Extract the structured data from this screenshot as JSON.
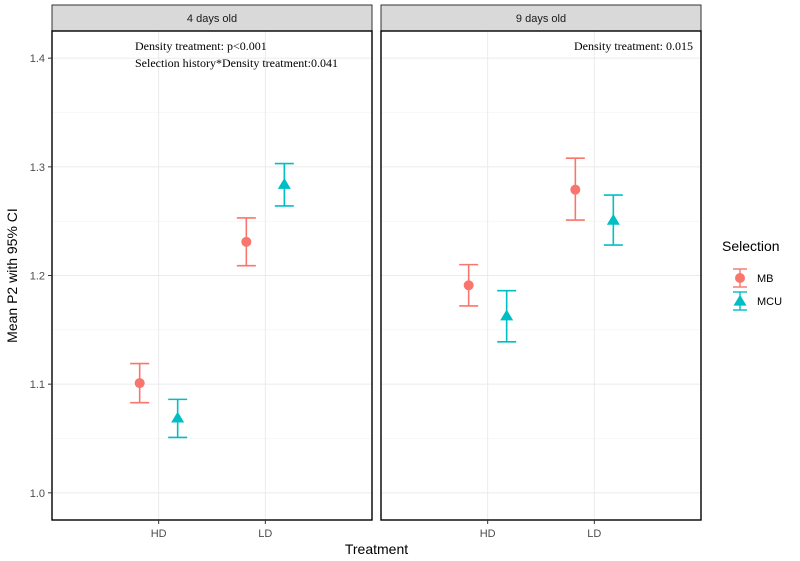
{
  "chart_data": {
    "type": "scatter",
    "ylabel": "Mean P2 with 95% CI",
    "xlabel": "Treatment",
    "ylim": [
      0.975,
      1.425
    ],
    "yticks": [
      1.0,
      1.1,
      1.2,
      1.3,
      1.4
    ],
    "ytick_labels": [
      "1.0",
      "1.1",
      "1.2",
      "1.3",
      "1.4"
    ],
    "categories": [
      "HD",
      "LD"
    ],
    "grid": true,
    "legend": {
      "title": "Selection",
      "position": "right",
      "entries": [
        {
          "name": "MB",
          "shape": "circle",
          "color": "#F8766D"
        },
        {
          "name": "MCU",
          "shape": "triangle",
          "color": "#00BFC4"
        }
      ]
    },
    "panels": [
      {
        "title": "4 days old",
        "annotations": [
          "Density treatment: p<0.001",
          "Selection history*Density treatment:0.041"
        ],
        "series": [
          {
            "name": "MB",
            "points": [
              {
                "x": "HD",
                "mean": 1.101,
                "lower": 1.083,
                "upper": 1.119
              },
              {
                "x": "LD",
                "mean": 1.231,
                "lower": 1.209,
                "upper": 1.253
              }
            ]
          },
          {
            "name": "MCU",
            "points": [
              {
                "x": "HD",
                "mean": 1.069,
                "lower": 1.051,
                "upper": 1.086
              },
              {
                "x": "LD",
                "mean": 1.284,
                "lower": 1.264,
                "upper": 1.303
              }
            ]
          }
        ]
      },
      {
        "title": "9 days old",
        "annotations": [
          "Density treatment: 0.015"
        ],
        "series": [
          {
            "name": "MB",
            "points": [
              {
                "x": "HD",
                "mean": 1.191,
                "lower": 1.172,
                "upper": 1.21
              },
              {
                "x": "LD",
                "mean": 1.279,
                "lower": 1.251,
                "upper": 1.308
              }
            ]
          },
          {
            "name": "MCU",
            "points": [
              {
                "x": "HD",
                "mean": 1.163,
                "lower": 1.139,
                "upper": 1.186
              },
              {
                "x": "LD",
                "mean": 1.251,
                "lower": 1.228,
                "upper": 1.274
              }
            ]
          }
        ]
      }
    ]
  }
}
